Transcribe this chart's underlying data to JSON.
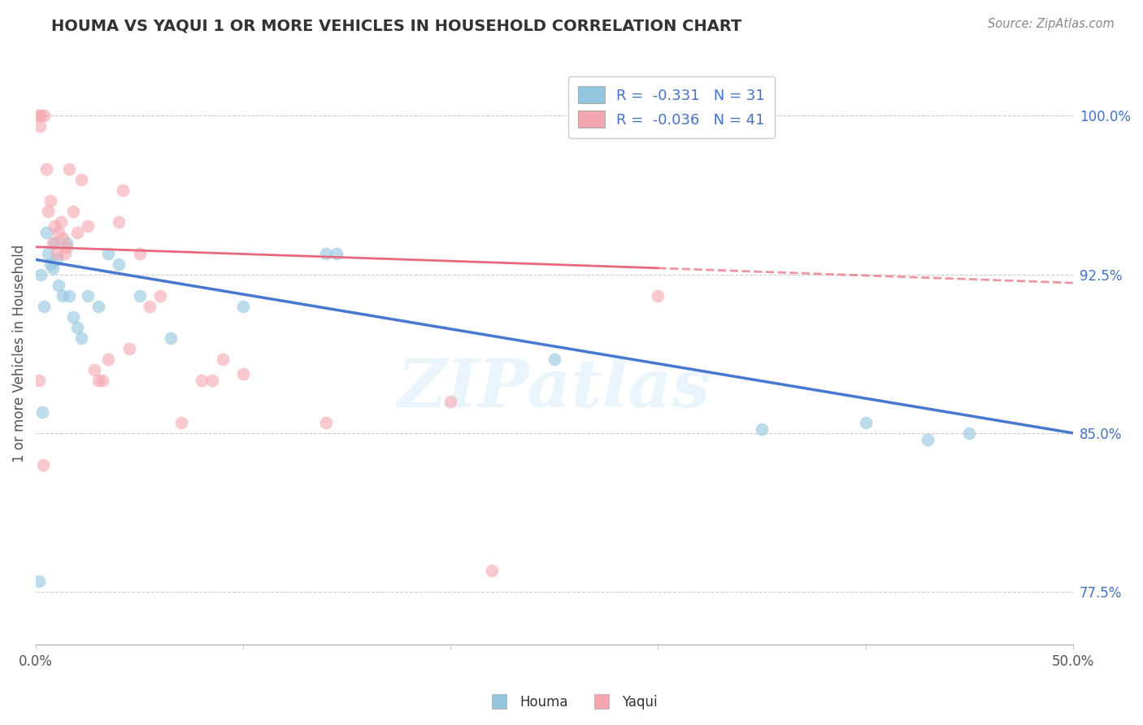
{
  "title": "HOUMA VS YAQUI 1 OR MORE VEHICLES IN HOUSEHOLD CORRELATION CHART",
  "source": "Source: ZipAtlas.com",
  "ylabel": "1 or more Vehicles in Household",
  "xlim": [
    0.0,
    50.0
  ],
  "ylim": [
    75.0,
    102.5
  ],
  "yticks": [
    77.5,
    85.0,
    92.5,
    100.0
  ],
  "ytick_labels": [
    "77.5%",
    "85.0%",
    "92.5%",
    "100.0%"
  ],
  "houma_R": "-0.331",
  "houma_N": "31",
  "yaqui_R": "-0.036",
  "yaqui_N": "41",
  "houma_color": "#92c5de",
  "yaqui_color": "#f4a6b0",
  "houma_line_color": "#4878cf",
  "yaqui_line_color": "#e8697d",
  "watermark": "ZIPatlas",
  "houma_line_x0": 0.0,
  "houma_line_y0": 93.2,
  "houma_line_x1": 50.0,
  "houma_line_y1": 85.0,
  "yaqui_line_solid_x0": 0.0,
  "yaqui_line_solid_y0": 93.8,
  "yaqui_line_solid_x1": 30.0,
  "yaqui_line_solid_y1": 92.8,
  "yaqui_line_dash_x0": 30.0,
  "yaqui_line_dash_y0": 92.8,
  "yaqui_line_dash_x1": 50.0,
  "yaqui_line_dash_y1": 92.1,
  "houma_scatter_x": [
    0.15,
    0.3,
    0.5,
    0.6,
    0.7,
    0.8,
    0.9,
    1.0,
    1.1,
    1.3,
    1.5,
    1.6,
    1.8,
    2.0,
    2.2,
    2.5,
    3.0,
    3.5,
    4.0,
    5.0,
    6.5,
    10.0,
    14.0,
    14.5,
    25.0,
    35.0,
    40.0,
    43.0,
    45.0,
    0.25,
    0.4
  ],
  "houma_scatter_y": [
    78.0,
    86.0,
    94.5,
    93.5,
    93.0,
    92.8,
    94.0,
    93.2,
    92.0,
    91.5,
    94.0,
    91.5,
    90.5,
    90.0,
    89.5,
    91.5,
    91.0,
    93.5,
    93.0,
    91.5,
    89.5,
    91.0,
    93.5,
    93.5,
    88.5,
    85.2,
    85.5,
    84.7,
    85.0,
    92.5,
    91.0
  ],
  "yaqui_scatter_x": [
    0.1,
    0.2,
    0.25,
    0.4,
    0.5,
    0.6,
    0.7,
    0.8,
    0.9,
    1.0,
    1.1,
    1.2,
    1.3,
    1.4,
    1.5,
    1.6,
    1.8,
    2.0,
    2.2,
    2.5,
    2.8,
    3.0,
    3.2,
    3.5,
    4.0,
    4.2,
    4.5,
    5.0,
    5.5,
    6.0,
    7.0,
    8.0,
    8.5,
    9.0,
    10.0,
    14.0,
    20.0,
    22.0,
    30.0,
    0.15,
    0.35
  ],
  "yaqui_scatter_y": [
    100.0,
    99.5,
    100.0,
    100.0,
    97.5,
    95.5,
    96.0,
    94.0,
    94.8,
    93.5,
    94.5,
    95.0,
    94.2,
    93.5,
    93.8,
    97.5,
    95.5,
    94.5,
    97.0,
    94.8,
    88.0,
    87.5,
    87.5,
    88.5,
    95.0,
    96.5,
    89.0,
    93.5,
    91.0,
    91.5,
    85.5,
    87.5,
    87.5,
    88.5,
    87.8,
    85.5,
    86.5,
    78.5,
    91.5,
    87.5,
    83.5
  ]
}
